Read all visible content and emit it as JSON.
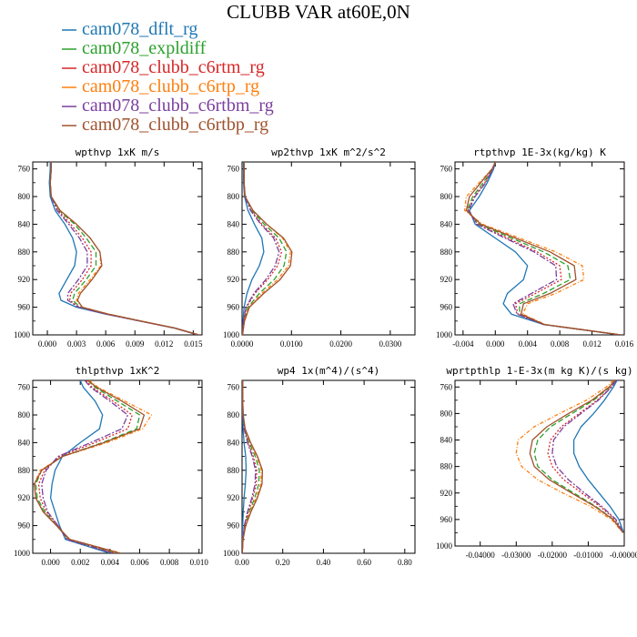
{
  "figure": {
    "title": "CLUBB VAR at60E,0N"
  },
  "legend": [
    {
      "name": "cam078_dflt_rg",
      "color": "#1f77b4"
    },
    {
      "name": "cam078_expldiff",
      "color": "#2ca02c"
    },
    {
      "name": "cam078_clubb_c6rtm_rg",
      "color": "#d62728"
    },
    {
      "name": "cam078_clubb_c6rtp_rg",
      "color": "#ff7f0e"
    },
    {
      "name": "cam078_clubb_c6rtbm_rg",
      "color": "#7b3f9e"
    },
    {
      "name": "cam078_clubb_c6rtbp_rg",
      "color": "#a0522d"
    }
  ],
  "chart_data": [
    {
      "type": "line",
      "title": "wpthvp  1xK m/s",
      "xlim": [
        -0.0015,
        0.0159
      ],
      "ylim": [
        1000,
        750
      ],
      "xticks": [
        0.0,
        0.003,
        0.006,
        0.009,
        0.012,
        0.015
      ],
      "xtick_labels": [
        "0.000",
        "0.003",
        "0.006",
        "0.009",
        "0.012",
        "0.015"
      ],
      "yticks": [
        760,
        800,
        840,
        880,
        920,
        960,
        1000
      ],
      "ytick_labels": [
        "760",
        "800",
        "840",
        "880",
        "920",
        "960",
        "1000"
      ],
      "y": [
        750,
        760,
        780,
        800,
        820,
        840,
        860,
        880,
        900,
        920,
        940,
        950,
        960,
        970,
        980,
        990,
        1000
      ],
      "series": [
        {
          "name": "cam078_dflt_rg",
          "values": [
            0.0003,
            0.0003,
            0.0002,
            0.0003,
            0.0008,
            0.0018,
            0.0026,
            0.003,
            0.0028,
            0.002,
            0.0012,
            0.0014,
            0.003,
            0.006,
            0.0095,
            0.013,
            0.0155
          ]
        },
        {
          "name": "cam078_expldiff",
          "values": [
            0.0004,
            0.0004,
            0.0003,
            0.0004,
            0.0012,
            0.0028,
            0.004,
            0.005,
            0.005,
            0.004,
            0.0028,
            0.0026,
            0.0034,
            0.0062,
            0.0096,
            0.013,
            0.0155
          ]
        },
        {
          "name": "cam078_clubb_c6rtm_rg",
          "values": [
            0.0004,
            0.0004,
            0.0003,
            0.0004,
            0.0011,
            0.0024,
            0.0036,
            0.0045,
            0.0045,
            0.0036,
            0.0024,
            0.0023,
            0.0033,
            0.0061,
            0.0095,
            0.013,
            0.0155
          ]
        },
        {
          "name": "cam078_clubb_c6rtp_rg",
          "values": [
            0.0004,
            0.0004,
            0.0003,
            0.0004,
            0.0013,
            0.003,
            0.0044,
            0.0054,
            0.0055,
            0.0044,
            0.0032,
            0.003,
            0.0036,
            0.0063,
            0.0096,
            0.013,
            0.0156
          ]
        },
        {
          "name": "cam078_clubb_c6rtbm_rg",
          "values": [
            0.0004,
            0.0004,
            0.0003,
            0.0004,
            0.001,
            0.0022,
            0.0033,
            0.0041,
            0.0041,
            0.0032,
            0.0021,
            0.0021,
            0.0032,
            0.0061,
            0.0095,
            0.013,
            0.0155
          ]
        },
        {
          "name": "cam078_clubb_c6rtbp_rg",
          "values": [
            0.0004,
            0.0004,
            0.0003,
            0.0004,
            0.0013,
            0.003,
            0.0044,
            0.0054,
            0.0056,
            0.0046,
            0.0034,
            0.0031,
            0.0036,
            0.0063,
            0.0096,
            0.0131,
            0.0156
          ]
        }
      ]
    },
    {
      "type": "line",
      "title": "wp2thvp  1xK m^2/s^2",
      "xlim": [
        0.0,
        0.035
      ],
      "ylim": [
        1000,
        750
      ],
      "xticks": [
        0.0,
        0.01,
        0.02,
        0.03
      ],
      "xtick_labels": [
        "0.0000",
        "0.0100",
        "0.0200",
        "0.0300"
      ],
      "yticks": [
        760,
        800,
        840,
        880,
        920,
        960,
        1000
      ],
      "ytick_labels": [
        "760",
        "800",
        "840",
        "880",
        "920",
        "960",
        "1000"
      ],
      "y": [
        750,
        760,
        780,
        800,
        820,
        840,
        860,
        880,
        900,
        920,
        940,
        960,
        980,
        1000
      ],
      "series": [
        {
          "name": "cam078_dflt_rg",
          "values": [
            0.0003,
            0.0003,
            0.0003,
            0.0005,
            0.0012,
            0.0025,
            0.004,
            0.0044,
            0.0035,
            0.002,
            0.001,
            0.0004,
            0.0002,
            0.0001
          ]
        },
        {
          "name": "cam078_expldiff",
          "values": [
            0.0004,
            0.0004,
            0.0004,
            0.0006,
            0.002,
            0.0045,
            0.0075,
            0.009,
            0.0085,
            0.0065,
            0.0035,
            0.0012,
            0.0004,
            0.0001
          ]
        },
        {
          "name": "cam078_clubb_c6rtm_rg",
          "values": [
            0.0004,
            0.0004,
            0.0004,
            0.0006,
            0.0018,
            0.004,
            0.0068,
            0.008,
            0.0072,
            0.0052,
            0.0026,
            0.0009,
            0.0003,
            0.0001
          ]
        },
        {
          "name": "cam078_clubb_c6rtp_rg",
          "values": [
            0.0004,
            0.0004,
            0.0004,
            0.0006,
            0.0022,
            0.005,
            0.0082,
            0.0098,
            0.0094,
            0.0072,
            0.004,
            0.0014,
            0.0004,
            0.0001
          ]
        },
        {
          "name": "cam078_clubb_c6rtbm_rg",
          "values": [
            0.0004,
            0.0004,
            0.0004,
            0.0006,
            0.0017,
            0.0038,
            0.0064,
            0.0075,
            0.0067,
            0.0048,
            0.0024,
            0.0008,
            0.0003,
            0.0001
          ]
        },
        {
          "name": "cam078_clubb_c6rtbp_rg",
          "values": [
            0.0004,
            0.0004,
            0.0004,
            0.0006,
            0.0022,
            0.005,
            0.0084,
            0.0101,
            0.0098,
            0.0077,
            0.0044,
            0.0015,
            0.0005,
            0.0001
          ]
        }
      ]
    },
    {
      "type": "line",
      "title": "rtpthvp  1E-3x(kg/kg) K",
      "xlim": [
        -0.005,
        0.016
      ],
      "ylim": [
        1000,
        750
      ],
      "xticks": [
        -0.004,
        0.0,
        0.004,
        0.008,
        0.012,
        0.016
      ],
      "xtick_labels": [
        "-0.004",
        "0.000",
        "0.004",
        "0.008",
        "0.012",
        "0.016"
      ],
      "yticks": [
        760,
        800,
        840,
        880,
        920,
        960,
        1000
      ],
      "ytick_labels": [
        "760",
        "800",
        "840",
        "880",
        "920",
        "960",
        "1000"
      ],
      "y": [
        750,
        760,
        780,
        800,
        820,
        840,
        860,
        880,
        900,
        920,
        940,
        955,
        970,
        985,
        1000
      ],
      "series": [
        {
          "name": "cam078_dflt_rg",
          "values": [
            0.0,
            -0.0002,
            -0.001,
            -0.002,
            -0.0032,
            -0.0025,
            0.0,
            0.0025,
            0.004,
            0.0035,
            0.0015,
            0.001,
            0.002,
            0.006,
            0.0155
          ]
        },
        {
          "name": "cam078_expldiff",
          "values": [
            0.0,
            -0.0003,
            -0.0015,
            -0.0028,
            -0.0035,
            -0.002,
            0.002,
            0.006,
            0.009,
            0.0093,
            0.006,
            0.003,
            0.003,
            0.006,
            0.0155
          ]
        },
        {
          "name": "cam078_clubb_c6rtm_rg",
          "values": [
            0.0,
            -0.0003,
            -0.0013,
            -0.0026,
            -0.0034,
            -0.0022,
            0.0015,
            0.0052,
            0.008,
            0.0082,
            0.005,
            0.0025,
            0.0028,
            0.006,
            0.0155
          ]
        },
        {
          "name": "cam078_clubb_c6rtp_rg",
          "values": [
            0.0,
            -0.0004,
            -0.002,
            -0.0036,
            -0.0038,
            -0.0016,
            0.003,
            0.0075,
            0.0108,
            0.011,
            0.0075,
            0.004,
            0.0034,
            0.0062,
            0.0156
          ]
        },
        {
          "name": "cam078_clubb_c6rtbm_rg",
          "values": [
            0.0,
            -0.0003,
            -0.0012,
            -0.0025,
            -0.0033,
            -0.0023,
            0.0012,
            0.0048,
            0.0075,
            0.0076,
            0.0045,
            0.0022,
            0.0027,
            0.006,
            0.0155
          ]
        },
        {
          "name": "cam078_clubb_c6rtbp_rg",
          "values": [
            0.0,
            -0.0004,
            -0.0018,
            -0.0032,
            -0.0036,
            -0.0018,
            0.0025,
            0.0068,
            0.0098,
            0.01,
            0.0068,
            0.0035,
            0.0032,
            0.0061,
            0.0156
          ]
        }
      ]
    },
    {
      "type": "line",
      "title": "thlpthvp  1xK^2",
      "xlim": [
        -0.0012,
        0.0102
      ],
      "ylim": [
        1000,
        750
      ],
      "xticks": [
        0.0,
        0.002,
        0.004,
        0.006,
        0.008,
        0.01
      ],
      "xtick_labels": [
        "0.000",
        "0.002",
        "0.004",
        "0.006",
        "0.008",
        "0.010"
      ],
      "yticks": [
        760,
        800,
        840,
        880,
        920,
        960,
        1000
      ],
      "ytick_labels": [
        "760",
        "800",
        "840",
        "880",
        "920",
        "960",
        "1000"
      ],
      "y": [
        750,
        760,
        780,
        800,
        820,
        840,
        860,
        880,
        900,
        920,
        940,
        960,
        980,
        1000
      ],
      "series": [
        {
          "name": "cam078_dflt_rg",
          "values": [
            0.002,
            0.0022,
            0.003,
            0.0035,
            0.0033,
            0.002,
            0.0008,
            0.0003,
            0.0001,
            0.0,
            0.0003,
            0.0006,
            0.001,
            0.004
          ]
        },
        {
          "name": "cam078_expldiff",
          "values": [
            0.0025,
            0.003,
            0.0045,
            0.006,
            0.0058,
            0.0035,
            0.0008,
            -0.0006,
            -0.001,
            -0.0009,
            -0.0004,
            0.0004,
            0.0012,
            0.0045
          ]
        },
        {
          "name": "cam078_clubb_c6rtm_rg",
          "values": [
            0.0024,
            0.0028,
            0.0042,
            0.0055,
            0.0052,
            0.003,
            0.0006,
            -0.0004,
            -0.0008,
            -0.0007,
            -0.0003,
            0.0005,
            0.0012,
            0.0043
          ]
        },
        {
          "name": "cam078_clubb_c6rtp_rg",
          "values": [
            0.0026,
            0.0032,
            0.005,
            0.0068,
            0.0062,
            0.0038,
            0.0008,
            -0.0007,
            -0.0011,
            -0.001,
            -0.0005,
            0.0004,
            0.0013,
            0.0048
          ]
        },
        {
          "name": "cam078_clubb_c6rtbm_rg",
          "values": [
            0.0023,
            0.0027,
            0.004,
            0.0052,
            0.0048,
            0.0027,
            0.0005,
            -0.0003,
            -0.0006,
            -0.0005,
            -0.0002,
            0.0005,
            0.0011,
            0.0042
          ]
        },
        {
          "name": "cam078_clubb_c6rtbp_rg",
          "values": [
            0.0025,
            0.0031,
            0.0048,
            0.0063,
            0.006,
            0.0036,
            0.0008,
            -0.0006,
            -0.0011,
            -0.001,
            -0.0005,
            0.0004,
            0.0013,
            0.0047
          ]
        }
      ]
    },
    {
      "type": "line",
      "title": "wp4  1x(m^4)/(s^4)",
      "xlim": [
        0.0,
        0.85
      ],
      "ylim": [
        1000,
        750
      ],
      "xticks": [
        0.0,
        0.2,
        0.4,
        0.6,
        0.8
      ],
      "xtick_labels": [
        "0.00",
        "0.20",
        "0.40",
        "0.60",
        "0.80"
      ],
      "yticks": [
        760,
        800,
        840,
        880,
        920,
        960,
        1000
      ],
      "ytick_labels": [
        "760",
        "800",
        "840",
        "880",
        "920",
        "960",
        "1000"
      ],
      "y": [
        750,
        780,
        800,
        820,
        840,
        860,
        880,
        900,
        920,
        940,
        960,
        980,
        1000
      ],
      "series": [
        {
          "name": "cam078_dflt_rg",
          "values": [
            0.002,
            0.002,
            0.003,
            0.005,
            0.01,
            0.018,
            0.02,
            0.016,
            0.01,
            0.006,
            0.003,
            0.002,
            0.001
          ]
        },
        {
          "name": "cam078_expldiff",
          "values": [
            0.003,
            0.003,
            0.005,
            0.012,
            0.035,
            0.065,
            0.085,
            0.082,
            0.062,
            0.036,
            0.014,
            0.004,
            0.001
          ]
        },
        {
          "name": "cam078_clubb_c6rtm_rg",
          "values": [
            0.003,
            0.003,
            0.005,
            0.011,
            0.03,
            0.055,
            0.072,
            0.07,
            0.053,
            0.03,
            0.012,
            0.004,
            0.001
          ]
        },
        {
          "name": "cam078_clubb_c6rtp_rg",
          "values": [
            0.003,
            0.003,
            0.006,
            0.014,
            0.04,
            0.072,
            0.095,
            0.092,
            0.07,
            0.04,
            0.016,
            0.005,
            0.001
          ]
        },
        {
          "name": "cam078_clubb_c6rtbm_rg",
          "values": [
            0.003,
            0.003,
            0.005,
            0.01,
            0.027,
            0.05,
            0.066,
            0.064,
            0.048,
            0.027,
            0.011,
            0.004,
            0.001
          ]
        },
        {
          "name": "cam078_clubb_c6rtbp_rg",
          "values": [
            0.003,
            0.003,
            0.006,
            0.015,
            0.042,
            0.076,
            0.1,
            0.098,
            0.075,
            0.044,
            0.018,
            0.005,
            0.001
          ]
        }
      ]
    },
    {
      "type": "line",
      "title": "wprtpthlp  1-E-3x(m kg K)/(s kg)",
      "xlim": [
        -0.047,
        0.0
      ],
      "ylim": [
        1000,
        750
      ],
      "xticks": [
        -0.04,
        -0.03,
        -0.02,
        -0.01,
        0.0
      ],
      "xtick_labels": [
        "-0.04000",
        "-0.03000",
        "-0.02000",
        "-0.01000",
        "-0.00000"
      ],
      "yticks": [
        760,
        800,
        840,
        880,
        920,
        960,
        1000
      ],
      "ytick_labels": [
        "760",
        "800",
        "840",
        "880",
        "920",
        "960",
        "1000"
      ],
      "y": [
        750,
        760,
        780,
        800,
        820,
        840,
        860,
        880,
        900,
        920,
        940,
        960,
        980
      ],
      "series": [
        {
          "name": "cam078_dflt_rg",
          "values": [
            -0.002,
            -0.003,
            -0.0055,
            -0.0085,
            -0.012,
            -0.014,
            -0.014,
            -0.0125,
            -0.01,
            -0.007,
            -0.004,
            -0.0015,
            -0.0002
          ]
        },
        {
          "name": "cam078_expldiff",
          "values": [
            -0.0025,
            -0.004,
            -0.0085,
            -0.0145,
            -0.0205,
            -0.024,
            -0.025,
            -0.024,
            -0.02,
            -0.014,
            -0.008,
            -0.003,
            -0.0003
          ]
        },
        {
          "name": "cam078_clubb_c6rtm_rg",
          "values": [
            -0.0023,
            -0.0036,
            -0.0075,
            -0.0125,
            -0.0175,
            -0.0205,
            -0.0212,
            -0.02,
            -0.0168,
            -0.0118,
            -0.0068,
            -0.0025,
            -0.0003
          ]
        },
        {
          "name": "cam078_clubb_c6rtp_rg",
          "values": [
            -0.003,
            -0.005,
            -0.0105,
            -0.018,
            -0.025,
            -0.0295,
            -0.03,
            -0.0285,
            -0.024,
            -0.017,
            -0.0095,
            -0.0035,
            -0.0004
          ]
        },
        {
          "name": "cam078_clubb_c6rtbm_rg",
          "values": [
            -0.0023,
            -0.0035,
            -0.0072,
            -0.012,
            -0.0168,
            -0.0196,
            -0.02,
            -0.0188,
            -0.0155,
            -0.011,
            -0.0063,
            -0.0023,
            -0.0003
          ]
        },
        {
          "name": "cam078_clubb_c6rtbp_rg",
          "values": [
            -0.0026,
            -0.0042,
            -0.009,
            -0.0155,
            -0.0215,
            -0.0255,
            -0.0262,
            -0.025,
            -0.0208,
            -0.0146,
            -0.0083,
            -0.0031,
            -0.0003
          ]
        }
      ]
    }
  ],
  "style": {
    "dash": {
      "cam078_dflt_rg": "",
      "cam078_expldiff": "6,3",
      "cam078_clubb_c6rtm_rg": "2,2",
      "cam078_clubb_c6rtp_rg": "4,2,1,2",
      "cam078_clubb_c6rtbm_rg": "7,2,2,2",
      "cam078_clubb_c6rtbp_rg": ""
    }
  }
}
